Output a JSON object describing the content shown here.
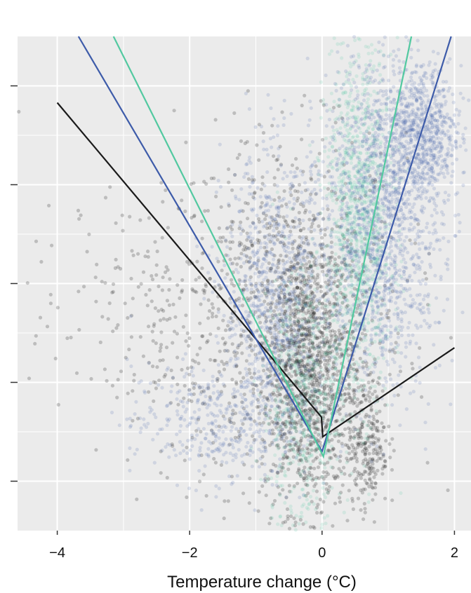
{
  "chart_data": {
    "type": "scatter",
    "xlabel": "Temperature change (°C)",
    "ylabel": "",
    "xlim": [
      -4.6,
      2.25
    ],
    "xticks": [
      "−4",
      "−2",
      "0",
      "2"
    ],
    "xtick_values": [
      -4,
      -2,
      0,
      2
    ],
    "ylim": [
      0,
      5
    ],
    "ytick_values": [
      0.5,
      1.5,
      2.5,
      3.5,
      4.5
    ],
    "grid": true,
    "background": "#ebebeb",
    "series": [
      {
        "color": "#1a1a1a",
        "clouds": [
          {
            "cx": -0.55,
            "cy": 2.2,
            "sx": 0.9,
            "sy": 0.9,
            "n": 900
          },
          {
            "cx": -0.2,
            "cy": 1.6,
            "sx": 0.35,
            "sy": 0.7,
            "n": 1200
          },
          {
            "cx": -2.6,
            "cy": 2.1,
            "sx": 1.0,
            "sy": 0.6,
            "n": 220
          },
          {
            "cx": 0.7,
            "cy": 0.9,
            "sx": 0.15,
            "sy": 0.35,
            "n": 220
          }
        ],
        "fit": [
          [
            -4.0,
            4.33
          ],
          [
            -0.01,
            1.15
          ],
          [
            0.01,
            0.95
          ],
          [
            2.0,
            1.85
          ]
        ]
      },
      {
        "color": "#3d5ba9",
        "clouds": [
          {
            "cx": -0.7,
            "cy": 2.3,
            "sx": 0.4,
            "sy": 0.75,
            "n": 900
          },
          {
            "cx": 0.9,
            "cy": 3.2,
            "sx": 0.45,
            "sy": 0.85,
            "n": 1500
          },
          {
            "cx": 1.5,
            "cy": 4.0,
            "sx": 0.3,
            "sy": 0.35,
            "n": 700
          },
          {
            "cx": -1.7,
            "cy": 1.1,
            "sx": 0.6,
            "sy": 0.3,
            "n": 350
          }
        ],
        "fit": [
          [
            -3.68,
            5.0
          ],
          [
            0.0,
            0.8
          ],
          [
            1.95,
            5.0
          ]
        ]
      },
      {
        "color": "#52c9a0",
        "clouds": [
          {
            "cx": 0.55,
            "cy": 3.1,
            "sx": 0.25,
            "sy": 0.9,
            "n": 1100
          },
          {
            "cx": -0.3,
            "cy": 1.3,
            "sx": 0.3,
            "sy": 0.7,
            "n": 500
          }
        ],
        "fit": [
          [
            -3.15,
            5.0
          ],
          [
            0.02,
            0.75
          ],
          [
            1.35,
            5.0
          ]
        ]
      }
    ]
  }
}
